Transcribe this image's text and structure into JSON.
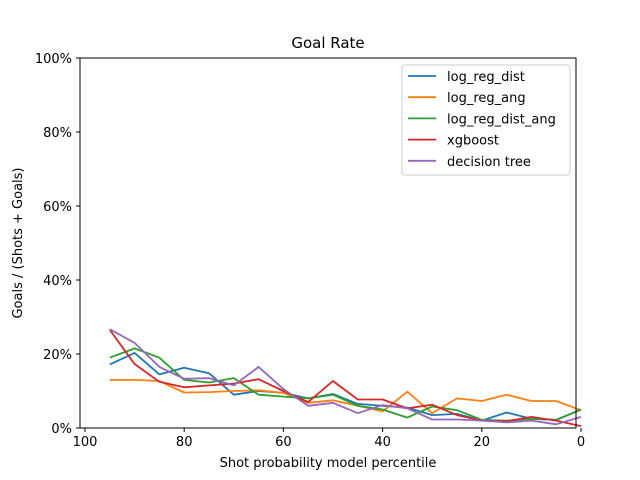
{
  "chart_data": {
    "type": "line",
    "title": "Goal Rate",
    "xlabel": "Shot probability model percentile",
    "ylabel": "Goals / (Shots + Goals)",
    "xlim": [
      100,
      0
    ],
    "ylim": [
      0,
      1
    ],
    "xticks": [
      100,
      80,
      60,
      40,
      20,
      0
    ],
    "yticks": [
      0,
      0.2,
      0.4,
      0.6,
      0.8,
      1.0
    ],
    "ytick_labels": [
      "0%",
      "20%",
      "40%",
      "60%",
      "80%",
      "100%"
    ],
    "grid": false,
    "legend_position": "top-right",
    "x": [
      95,
      90,
      85,
      80,
      75,
      70,
      65,
      60,
      55,
      50,
      45,
      40,
      35,
      30,
      25,
      20,
      15,
      10,
      5,
      0
    ],
    "series": [
      {
        "name": "log_reg_dist",
        "color": "#1f77b4",
        "values": [
          0.172,
          0.203,
          0.145,
          0.163,
          0.148,
          0.09,
          0.1,
          0.095,
          0.08,
          0.092,
          0.065,
          0.06,
          0.055,
          0.035,
          0.038,
          0.02,
          0.042,
          0.025,
          0.022,
          0.05
        ]
      },
      {
        "name": "log_reg_ang",
        "color": "#ff7f0e",
        "values": [
          0.13,
          0.13,
          0.127,
          0.096,
          0.097,
          0.1,
          0.102,
          0.095,
          0.068,
          0.075,
          0.06,
          0.045,
          0.098,
          0.04,
          0.08,
          0.073,
          0.09,
          0.073,
          0.073,
          0.048
        ]
      },
      {
        "name": "log_reg_dist_ang",
        "color": "#2ca02c",
        "values": [
          0.19,
          0.215,
          0.19,
          0.13,
          0.123,
          0.135,
          0.09,
          0.085,
          0.08,
          0.09,
          0.06,
          0.05,
          0.028,
          0.058,
          0.048,
          0.022,
          0.02,
          0.025,
          0.022,
          0.05
        ]
      },
      {
        "name": "xgboost",
        "color": "#d62728",
        "values": [
          0.265,
          0.173,
          0.125,
          0.11,
          0.115,
          0.12,
          0.132,
          0.1,
          0.07,
          0.127,
          0.077,
          0.077,
          0.053,
          0.063,
          0.035,
          0.02,
          0.018,
          0.03,
          0.02,
          0.005
        ]
      },
      {
        "name": "decision tree",
        "color": "#9467bd",
        "values": [
          0.267,
          0.23,
          0.165,
          0.133,
          0.135,
          0.115,
          0.165,
          0.105,
          0.06,
          0.068,
          0.04,
          0.062,
          0.053,
          0.023,
          0.023,
          0.02,
          0.015,
          0.02,
          0.01,
          0.03
        ]
      }
    ]
  }
}
